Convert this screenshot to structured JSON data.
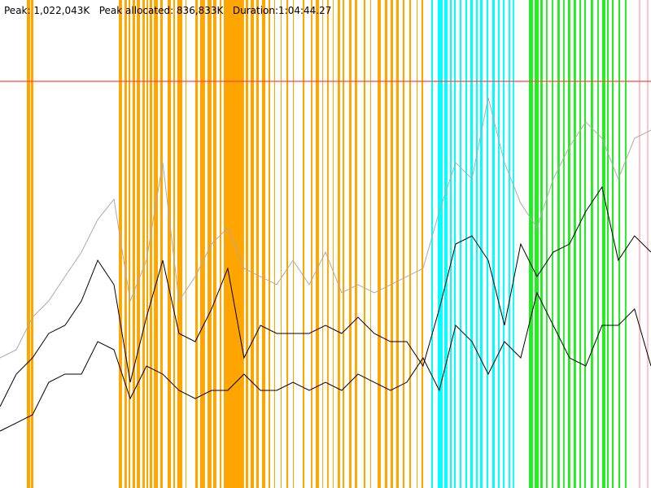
{
  "chart_data": {
    "type": "line",
    "title": "Peak: 1,022,043K   Peak allocated: 836,833K   Duration:1:04:44.27",
    "xlim": [
      0,
      3884.27
    ],
    "ylim": [
      0,
      1226452
    ],
    "x": [
      0,
      97,
      194,
      291,
      388,
      486,
      583,
      680,
      777,
      874,
      971,
      1068,
      1165,
      1262,
      1359,
      1456,
      1554,
      1651,
      1748,
      1845,
      1942,
      2039,
      2136,
      2233,
      2330,
      2427,
      2524,
      2621,
      2719,
      2816,
      2913,
      3010,
      3107,
      3204,
      3301,
      3398,
      3495,
      3592,
      3689,
      3786,
      3884
    ],
    "reference_line": {
      "value": 1022043,
      "color": "#ff4444"
    },
    "spans": [
      {
        "color": "#ffa500",
        "ranges": [
          [
            160,
            180
          ],
          [
            184,
            199
          ],
          [
            709,
            728
          ],
          [
            743,
            757
          ],
          [
            767,
            777
          ],
          [
            791,
            806
          ],
          [
            816,
            835
          ],
          [
            850,
            864
          ],
          [
            874,
            884
          ],
          [
            893,
            908
          ],
          [
            918,
            942
          ],
          [
            956,
            971
          ],
          [
            1000,
            1020
          ],
          [
            1034,
            1044
          ],
          [
            1058,
            1088
          ],
          [
            1107,
            1112
          ],
          [
            1165,
            1180
          ],
          [
            1194,
            1223
          ],
          [
            1238,
            1262
          ],
          [
            1272,
            1291
          ],
          [
            1311,
            1321
          ],
          [
            1335,
            1456
          ],
          [
            1466,
            1481
          ],
          [
            1495,
            1515
          ],
          [
            1529,
            1544
          ],
          [
            1563,
            1583
          ],
          [
            1602,
            1612
          ],
          [
            1636,
            1641
          ],
          [
            1675,
            1680
          ],
          [
            1709,
            1719
          ],
          [
            1748,
            1753
          ],
          [
            1806,
            1816
          ],
          [
            1855,
            1864
          ],
          [
            1884,
            1903
          ],
          [
            1923,
            1927
          ],
          [
            1952,
            1961
          ],
          [
            1986,
            1991
          ],
          [
            2015,
            2029
          ],
          [
            2044,
            2054
          ],
          [
            2083,
            2097
          ],
          [
            2117,
            2131
          ],
          [
            2170,
            2180
          ],
          [
            2209,
            2214
          ],
          [
            2253,
            2272
          ],
          [
            2296,
            2311
          ],
          [
            2330,
            2345
          ],
          [
            2364,
            2379
          ],
          [
            2403,
            2413
          ],
          [
            2442,
            2452
          ],
          [
            2486,
            2491
          ],
          [
            2515,
            2525
          ]
        ]
      },
      {
        "color": "#00ffff",
        "ranges": [
          [
            2573,
            2583
          ],
          [
            2612,
            2641
          ],
          [
            2651,
            2670
          ],
          [
            2685,
            2695
          ],
          [
            2709,
            2719
          ],
          [
            2743,
            2753
          ],
          [
            2777,
            2787
          ],
          [
            2806,
            2821
          ],
          [
            2840,
            2850
          ],
          [
            2864,
            2879
          ],
          [
            2903,
            2913
          ],
          [
            2937,
            2952
          ],
          [
            2971,
            2981
          ],
          [
            3000,
            3010
          ],
          [
            3034,
            3044
          ],
          [
            3059,
            3068
          ]
        ]
      },
      {
        "color": "#22ee22",
        "ranges": [
          [
            3156,
            3180
          ],
          [
            3190,
            3214
          ],
          [
            3224,
            3238
          ],
          [
            3258,
            3267
          ],
          [
            3292,
            3301
          ],
          [
            3326,
            3340
          ],
          [
            3360,
            3369
          ],
          [
            3389,
            3403
          ],
          [
            3423,
            3437
          ],
          [
            3457,
            3467
          ],
          [
            3486,
            3496
          ],
          [
            3525,
            3539
          ],
          [
            3564,
            3573
          ],
          [
            3593,
            3612
          ],
          [
            3622,
            3632
          ],
          [
            3651,
            3661
          ],
          [
            3690,
            3700
          ],
          [
            3729,
            3738
          ]
        ]
      },
      {
        "color": "#ffc0cb",
        "ranges": [
          [
            3811,
            3821
          ],
          [
            3860,
            3869
          ]
        ]
      }
    ],
    "series": [
      {
        "color": "#aaaaaa",
        "values": [
          327000,
          347500,
          429200,
          470100,
          531400,
          592800,
          674500,
          725600,
          470100,
          572300,
          817600,
          470100,
          531400,
          613200,
          654100,
          551900,
          531400,
          511000,
          572300,
          511000,
          592800,
          490600,
          511000,
          490600,
          511000,
          531400,
          551900,
          695000,
          817600,
          776700,
          981100,
          817600,
          715400,
          654100,
          776700,
          858500,
          919800,
          878900,
          776700,
          878900,
          899400
        ]
      },
      {
        "color": "#000000",
        "values": [
          204400,
          286200,
          327000,
          388400,
          408800,
          470100,
          572300,
          511000,
          265700,
          429200,
          572300,
          388400,
          367900,
          449700,
          551900,
          327000,
          408800,
          388400,
          388400,
          388400,
          408800,
          388400,
          429200,
          388400,
          367900,
          367900,
          306600,
          449700,
          613200,
          633600,
          572300,
          408800,
          613200,
          531400,
          592800,
          613200,
          695000,
          756300,
          572300,
          633600,
          592800
        ]
      },
      {
        "color": "#000000",
        "values": [
          143100,
          163500,
          184000,
          265700,
          286200,
          286200,
          367900,
          347500,
          224800,
          306600,
          286200,
          245300,
          224800,
          245300,
          245300,
          286200,
          245300,
          245300,
          265700,
          245300,
          265700,
          245300,
          286200,
          265700,
          245300,
          265700,
          327000,
          245300,
          408800,
          367900,
          286200,
          367900,
          327000,
          490600,
          408800,
          327000,
          306600,
          408800,
          408800,
          449700,
          306600
        ]
      }
    ]
  }
}
